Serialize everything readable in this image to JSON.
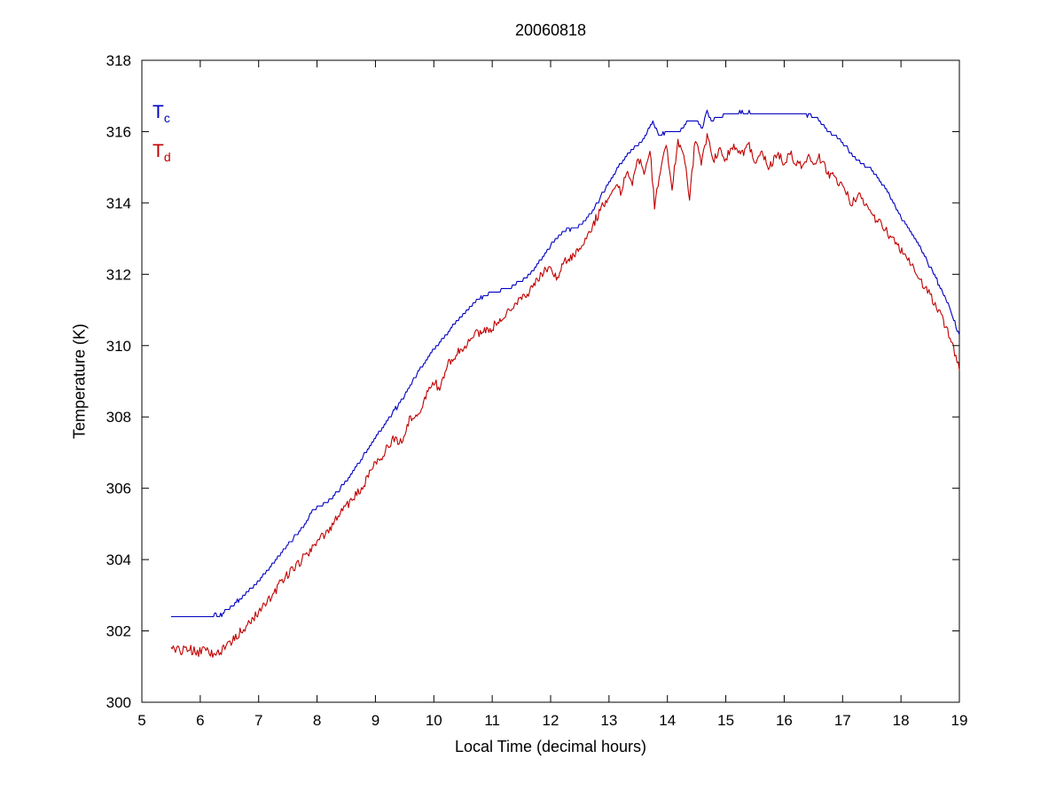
{
  "figure": {
    "title": "20060818",
    "xlabel": "Local Time (decimal hours)",
    "ylabel": "Temperature (K)"
  },
  "legend": [
    {
      "label": "T",
      "sub": "c",
      "color": "#0000c0"
    },
    {
      "label": "T",
      "sub": "d",
      "color": "#c00000"
    }
  ],
  "chart_data": {
    "type": "line",
    "title": "20060818",
    "xlabel": "Local Time (decimal hours)",
    "ylabel": "Temperature (K)",
    "xlim": [
      5,
      19
    ],
    "ylim": [
      300,
      318
    ],
    "xticks": [
      5,
      6,
      7,
      8,
      9,
      10,
      11,
      12,
      13,
      14,
      15,
      16,
      17,
      18,
      19
    ],
    "yticks": [
      300,
      302,
      304,
      306,
      308,
      310,
      312,
      314,
      316,
      318
    ],
    "grid": false,
    "legend_position": "inside-top-left",
    "series": [
      {
        "name": "Tc",
        "color": "#0000c0",
        "noise_amplitude": 0.03,
        "quantize": 0.1,
        "points": [
          [
            5.5,
            302.4
          ],
          [
            6.0,
            302.4
          ],
          [
            6.35,
            302.45
          ],
          [
            6.5,
            302.65
          ],
          [
            6.75,
            303.0
          ],
          [
            7.0,
            303.4
          ],
          [
            7.25,
            303.9
          ],
          [
            7.5,
            304.4
          ],
          [
            7.75,
            304.9
          ],
          [
            7.9,
            305.3
          ],
          [
            8.0,
            305.5
          ],
          [
            8.15,
            305.6
          ],
          [
            8.3,
            305.8
          ],
          [
            8.5,
            306.2
          ],
          [
            8.75,
            306.8
          ],
          [
            9.0,
            307.4
          ],
          [
            9.25,
            308.0
          ],
          [
            9.5,
            308.6
          ],
          [
            9.75,
            309.3
          ],
          [
            10.0,
            309.9
          ],
          [
            10.25,
            310.4
          ],
          [
            10.5,
            310.9
          ],
          [
            10.75,
            311.3
          ],
          [
            11.0,
            311.5
          ],
          [
            11.25,
            311.6
          ],
          [
            11.5,
            311.8
          ],
          [
            11.75,
            312.2
          ],
          [
            12.0,
            312.8
          ],
          [
            12.2,
            313.2
          ],
          [
            12.45,
            313.3
          ],
          [
            12.6,
            313.5
          ],
          [
            12.8,
            314.0
          ],
          [
            13.0,
            314.6
          ],
          [
            13.2,
            315.1
          ],
          [
            13.4,
            315.5
          ],
          [
            13.6,
            315.8
          ],
          [
            13.75,
            316.3
          ],
          [
            13.85,
            315.9
          ],
          [
            14.0,
            316.0
          ],
          [
            14.2,
            316.0
          ],
          [
            14.35,
            316.3
          ],
          [
            14.5,
            316.3
          ],
          [
            14.6,
            316.1
          ],
          [
            14.68,
            316.6
          ],
          [
            14.75,
            316.3
          ],
          [
            15.0,
            316.5
          ],
          [
            15.3,
            316.55
          ],
          [
            15.6,
            316.5
          ],
          [
            16.0,
            316.5
          ],
          [
            16.3,
            316.5
          ],
          [
            16.55,
            316.4
          ],
          [
            16.7,
            316.1
          ],
          [
            16.85,
            315.9
          ],
          [
            17.0,
            315.7
          ],
          [
            17.25,
            315.2
          ],
          [
            17.5,
            314.9
          ],
          [
            17.75,
            314.4
          ],
          [
            18.0,
            313.6
          ],
          [
            18.25,
            313.0
          ],
          [
            18.5,
            312.2
          ],
          [
            18.75,
            311.4
          ],
          [
            19.0,
            310.3
          ]
        ]
      },
      {
        "name": "Td",
        "color": "#c00000",
        "noise_amplitude": 0.13,
        "quantize": 0,
        "points": [
          [
            5.5,
            301.55
          ],
          [
            5.65,
            301.45
          ],
          [
            5.8,
            301.5
          ],
          [
            5.95,
            301.4
          ],
          [
            6.1,
            301.45
          ],
          [
            6.25,
            301.35
          ],
          [
            6.4,
            301.5
          ],
          [
            6.55,
            301.75
          ],
          [
            6.7,
            302.0
          ],
          [
            6.85,
            302.25
          ],
          [
            7.0,
            302.5
          ],
          [
            7.2,
            302.95
          ],
          [
            7.4,
            303.4
          ],
          [
            7.6,
            303.75
          ],
          [
            7.8,
            304.1
          ],
          [
            8.0,
            304.5
          ],
          [
            8.2,
            304.8
          ],
          [
            8.4,
            305.3
          ],
          [
            8.6,
            305.7
          ],
          [
            8.8,
            306.1
          ],
          [
            9.0,
            306.7
          ],
          [
            9.15,
            307.0
          ],
          [
            9.3,
            307.4
          ],
          [
            9.45,
            307.3
          ],
          [
            9.6,
            308.0
          ],
          [
            9.75,
            308.1
          ],
          [
            9.9,
            308.7
          ],
          [
            10.0,
            309.0
          ],
          [
            10.1,
            308.8
          ],
          [
            10.25,
            309.5
          ],
          [
            10.4,
            309.8
          ],
          [
            10.55,
            310.0
          ],
          [
            10.7,
            310.3
          ],
          [
            10.85,
            310.4
          ],
          [
            11.0,
            310.5
          ],
          [
            11.15,
            310.8
          ],
          [
            11.3,
            311.0
          ],
          [
            11.45,
            311.3
          ],
          [
            11.6,
            311.4
          ],
          [
            11.75,
            311.8
          ],
          [
            11.9,
            312.1
          ],
          [
            12.0,
            312.1
          ],
          [
            12.1,
            311.9
          ],
          [
            12.25,
            312.4
          ],
          [
            12.4,
            312.5
          ],
          [
            12.55,
            312.9
          ],
          [
            12.7,
            313.3
          ],
          [
            12.85,
            313.8
          ],
          [
            13.0,
            314.2
          ],
          [
            13.1,
            314.5
          ],
          [
            13.2,
            314.3
          ],
          [
            13.3,
            314.8
          ],
          [
            13.4,
            314.6
          ],
          [
            13.5,
            315.3
          ],
          [
            13.6,
            314.9
          ],
          [
            13.7,
            315.5
          ],
          [
            13.78,
            313.9
          ],
          [
            13.88,
            314.9
          ],
          [
            13.98,
            315.6
          ],
          [
            14.08,
            314.4
          ],
          [
            14.18,
            315.7
          ],
          [
            14.28,
            315.4
          ],
          [
            14.38,
            314.2
          ],
          [
            14.48,
            315.8
          ],
          [
            14.58,
            315.1
          ],
          [
            14.68,
            315.9
          ],
          [
            14.78,
            315.2
          ],
          [
            14.9,
            315.5
          ],
          [
            15.0,
            315.2
          ],
          [
            15.1,
            315.6
          ],
          [
            15.25,
            315.3
          ],
          [
            15.4,
            315.6
          ],
          [
            15.5,
            315.1
          ],
          [
            15.6,
            315.4
          ],
          [
            15.75,
            315.0
          ],
          [
            15.9,
            315.4
          ],
          [
            16.0,
            315.1
          ],
          [
            16.1,
            315.4
          ],
          [
            16.25,
            315.0
          ],
          [
            16.4,
            315.3
          ],
          [
            16.5,
            315.1
          ],
          [
            16.6,
            315.3
          ],
          [
            16.72,
            314.9
          ],
          [
            16.85,
            314.7
          ],
          [
            17.0,
            314.5
          ],
          [
            17.15,
            314.0
          ],
          [
            17.3,
            314.2
          ],
          [
            17.45,
            313.8
          ],
          [
            17.6,
            313.5
          ],
          [
            17.75,
            313.2
          ],
          [
            17.9,
            312.9
          ],
          [
            18.05,
            312.6
          ],
          [
            18.2,
            312.2
          ],
          [
            18.35,
            311.8
          ],
          [
            18.5,
            311.4
          ],
          [
            18.65,
            311.0
          ],
          [
            18.8,
            310.4
          ],
          [
            18.9,
            309.9
          ],
          [
            19.0,
            309.3
          ]
        ]
      }
    ]
  }
}
